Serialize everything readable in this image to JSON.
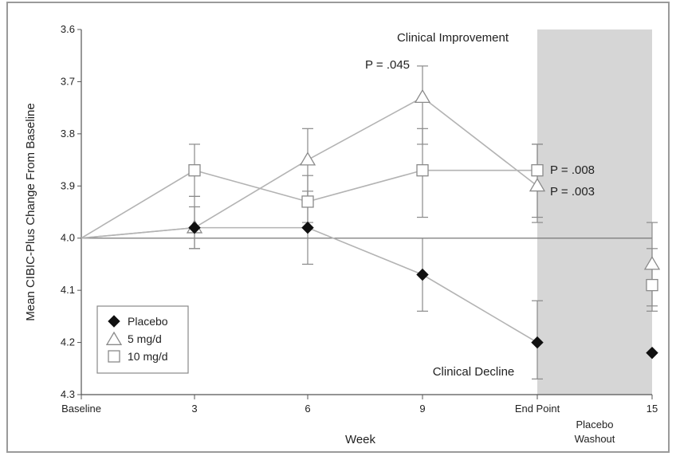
{
  "chart_data": {
    "type": "line",
    "title": "",
    "xlabel": "Week",
    "ylabel": "Mean CIBIC-Plus Change From Baseline",
    "x_categories": [
      "Baseline",
      "3",
      "6",
      "9",
      "End Point",
      "15"
    ],
    "x_sublabel": {
      "index": 5,
      "text_line1": "Placebo",
      "text_line2": "Washout"
    },
    "y_ticks": [
      "3.6",
      "3.7",
      "3.8",
      "3.9",
      "4.0",
      "4.1",
      "4.2",
      "4.3"
    ],
    "ylim": [
      4.3,
      3.6
    ],
    "y_inverted": true,
    "grid": false,
    "reference_line": 4.0,
    "shaded_region": {
      "from_category": "End Point",
      "to_category": "15",
      "label": "Placebo Washout",
      "color": "#d6d6d6"
    },
    "series": [
      {
        "name": "Placebo",
        "marker": "filled-diamond",
        "values": [
          4.0,
          3.98,
          3.98,
          4.07,
          4.2,
          4.22
        ],
        "err_low": [
          null,
          4.02,
          4.05,
          4.14,
          4.27,
          null
        ],
        "err_high": [
          null,
          3.94,
          3.91,
          4.0,
          4.12,
          null
        ]
      },
      {
        "name": "5 mg/d",
        "marker": "open-triangle",
        "values": [
          4.0,
          3.98,
          3.85,
          3.73,
          3.9,
          4.05
        ],
        "err_low": [
          null,
          4.02,
          3.94,
          3.82,
          3.97,
          4.13
        ],
        "err_high": [
          null,
          3.92,
          3.79,
          3.67,
          3.82,
          3.97
        ]
      },
      {
        "name": "10 mg/d",
        "marker": "open-square",
        "values": [
          4.0,
          3.87,
          3.93,
          3.87,
          3.87,
          4.09
        ],
        "err_low": [
          null,
          3.92,
          3.97,
          3.96,
          3.96,
          4.14
        ],
        "err_high": [
          null,
          3.82,
          3.88,
          3.79,
          3.82,
          4.02
        ]
      }
    ],
    "annotations": {
      "improvement": "Clinical Improvement",
      "decline": "Clinical Decline",
      "p_9_5mg": "P = .045",
      "p_end_10mg": "P = .008",
      "p_end_5mg": "P = .003"
    },
    "legend_position": "bottom-left",
    "colors": {
      "line": "#b3b3b3",
      "marker_stroke": "#8a8a8a",
      "placebo_fill": "#111111",
      "axis": "#555555",
      "shade": "#d6d6d6"
    }
  }
}
